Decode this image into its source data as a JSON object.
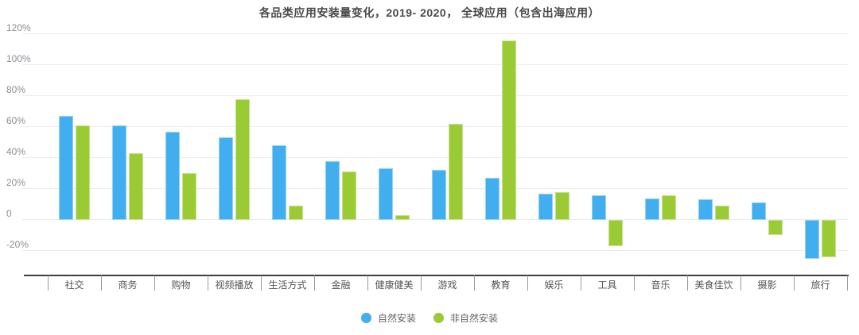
{
  "title": "各品类应用安装量变化，2019- 2020， 全球应用（包含出海应用）",
  "chart_data": {
    "type": "bar",
    "title": "各品类应用安装量变化，2019- 2020， 全球应用（包含出海应用）",
    "categories": [
      "社交",
      "商务",
      "购物",
      "视频播放",
      "生活方式",
      "金融",
      "健康健美",
      "游戏",
      "教育",
      "娱乐",
      "工具",
      "音乐",
      "美食佳饮",
      "摄影",
      "旅行"
    ],
    "series": [
      {
        "name": "自然安装",
        "color": "#41aef0",
        "values": [
          67,
          61,
          57,
          53,
          48,
          38,
          33,
          32,
          27,
          17,
          16,
          14,
          13,
          11,
          -25
        ]
      },
      {
        "name": "非自然安装",
        "color": "#9bcb34",
        "values": [
          61,
          43,
          30,
          78,
          9,
          31,
          3,
          62,
          116,
          18,
          -17,
          16,
          9,
          -10,
          -24
        ]
      }
    ],
    "unit": "%",
    "yticks": [
      {
        "label": "120%",
        "value": 120
      },
      {
        "label": "100%",
        "value": 100
      },
      {
        "label": "80%",
        "value": 80
      },
      {
        "label": "60%",
        "value": 60
      },
      {
        "label": "40%",
        "value": 40
      },
      {
        "label": "20%",
        "value": 20
      },
      {
        "label": "0",
        "value": 0
      },
      {
        "label": "-20%",
        "value": -20
      }
    ],
    "ylim": [
      -36,
      124
    ],
    "grid": true,
    "legend_position": "bottom"
  },
  "colors": {
    "organic_blue": "#41aef0",
    "non_organic_green": "#9bcb34",
    "title_text": "#4a4a4a",
    "tick_label": "#8a8f96",
    "category_label": "#555555",
    "gridline": "#ececec",
    "axis_line": "#3d3d3d",
    "legend_text": "#666666"
  }
}
